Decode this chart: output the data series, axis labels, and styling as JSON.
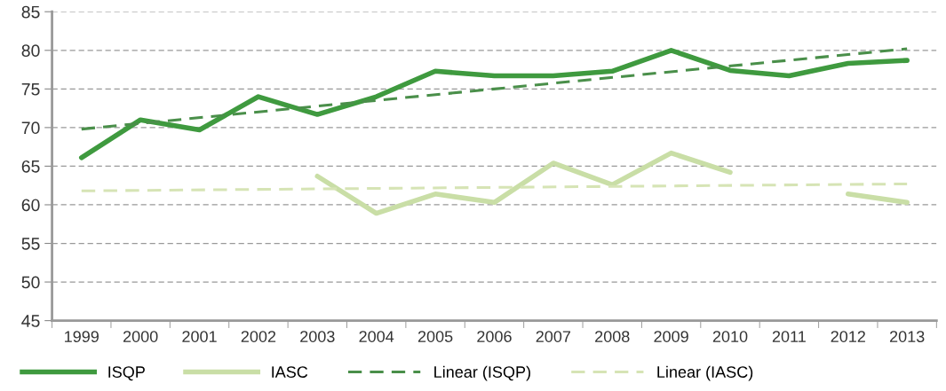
{
  "chart_data": {
    "type": "line",
    "categories": [
      "1999",
      "2000",
      "2001",
      "2002",
      "2003",
      "2004",
      "2005",
      "2006",
      "2007",
      "2008",
      "2009",
      "2010",
      "2011",
      "2012",
      "2013"
    ],
    "series": [
      {
        "name": "ISQP",
        "color": "#3f9a3f",
        "line_style": "solid",
        "values": [
          66.1,
          71.0,
          69.7,
          74.0,
          71.7,
          74.0,
          77.3,
          76.7,
          76.7,
          77.3,
          80.0,
          77.4,
          76.7,
          78.3,
          78.7
        ]
      },
      {
        "name": "IASC",
        "color": "#c9dea6",
        "line_style": "solid",
        "values": [
          null,
          null,
          null,
          null,
          63.7,
          58.9,
          61.4,
          60.3,
          65.4,
          62.6,
          66.7,
          64.2,
          null,
          61.4,
          60.3
        ]
      },
      {
        "name": "Linear (ISQP)",
        "color": "#4a8f4a",
        "line_style": "dashed",
        "values": [
          69.8,
          null,
          null,
          null,
          null,
          null,
          null,
          null,
          null,
          null,
          null,
          null,
          null,
          null,
          80.2
        ]
      },
      {
        "name": "Linear (IASC)",
        "color": "#d6e4b5",
        "line_style": "dashed",
        "values": [
          61.8,
          null,
          null,
          null,
          null,
          null,
          null,
          null,
          null,
          null,
          null,
          null,
          null,
          null,
          62.7
        ]
      }
    ],
    "ylim": [
      45,
      85
    ],
    "yticks": [
      45,
      50,
      55,
      60,
      65,
      70,
      75,
      80,
      85
    ],
    "grid": "y",
    "legend": "bottom",
    "marker": "none"
  }
}
